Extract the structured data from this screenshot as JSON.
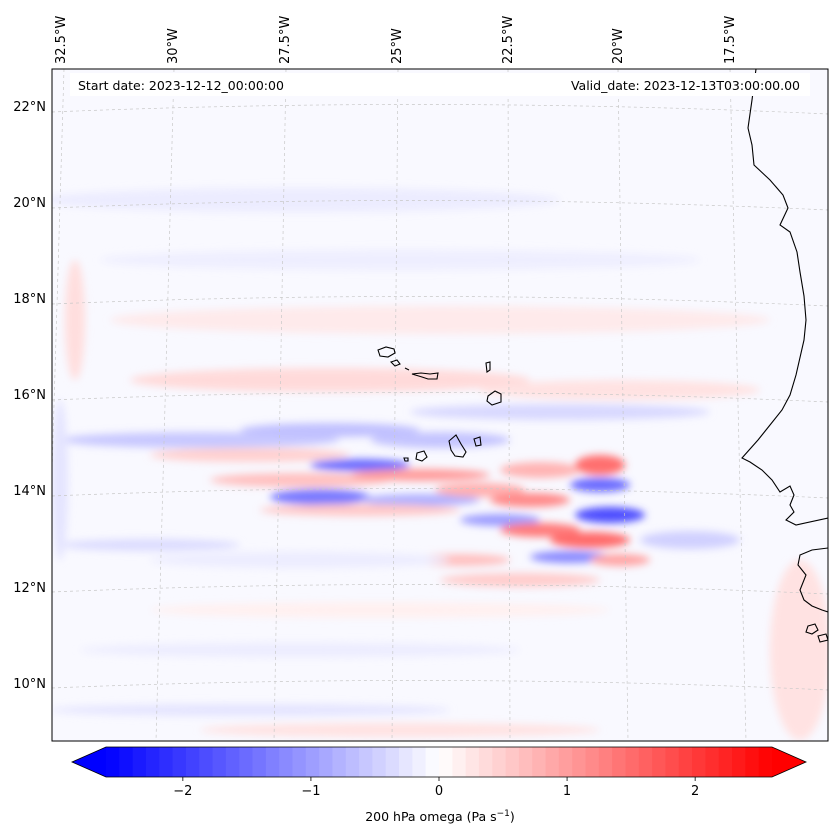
{
  "header": {
    "start_date": "Start date: 2023-12-12_00:00:00",
    "valid_date": "Valid_date: 2023-12-13T03:00:00.00"
  },
  "map": {
    "projection": "Lambert conformal",
    "lon_labels": [
      "32.5°W",
      "30°W",
      "27.5°W",
      "25°W",
      "22.5°W",
      "20°W",
      "17.5°W"
    ],
    "lat_labels": [
      "22°N",
      "20°N",
      "18°N",
      "16°N",
      "14°N",
      "12°N",
      "10°N"
    ],
    "gridlines": true,
    "coastline_color": "#000000"
  },
  "colorbar": {
    "label_prefix": "200 hPa omega (Pa s",
    "label_exp": "−1",
    "label_suffix": ")",
    "ticks": [
      "−2",
      "−1",
      "0",
      "1",
      "2"
    ],
    "tick_values": [
      -2,
      -1,
      0,
      1,
      2
    ],
    "vmin": -2.6,
    "vmax": 2.6,
    "cmap": "bwr",
    "color_min": "#0000ff",
    "color_mid": "#ffffff",
    "color_max": "#ff0000"
  }
}
